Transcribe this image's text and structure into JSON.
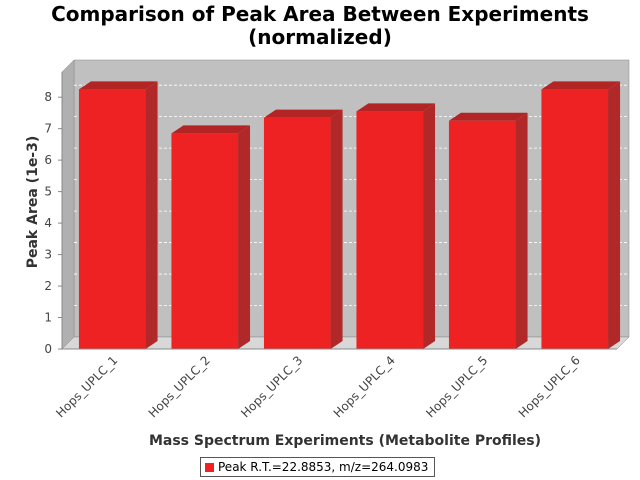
{
  "chart_data": {
    "type": "bar",
    "title": "Comparison of Peak Area Between Experiments",
    "subtitle": "(normalized)",
    "xlabel": "Mass Spectrum Experiments (Metabolite Profiles)",
    "ylabel": "Peak Area (1e-3)",
    "categories": [
      "Hops_UPLC_1",
      "Hops_UPLC_2",
      "Hops_UPLC_3",
      "Hops_UPLC_4",
      "Hops_UPLC_5",
      "Hops_UPLC_6"
    ],
    "series": [
      {
        "name": "Peak R.T.=22.8853, m/z=264.0983",
        "values": [
          8.25,
          6.85,
          7.35,
          7.55,
          7.25,
          8.25
        ],
        "color": "#ee2222"
      }
    ],
    "ylim": [
      0,
      8.8
    ],
    "yticks": [
      0,
      1,
      2,
      3,
      4,
      5,
      6,
      7,
      8
    ],
    "grid": true,
    "legend_position": "bottom",
    "plot_background": "#c0c0c0"
  }
}
